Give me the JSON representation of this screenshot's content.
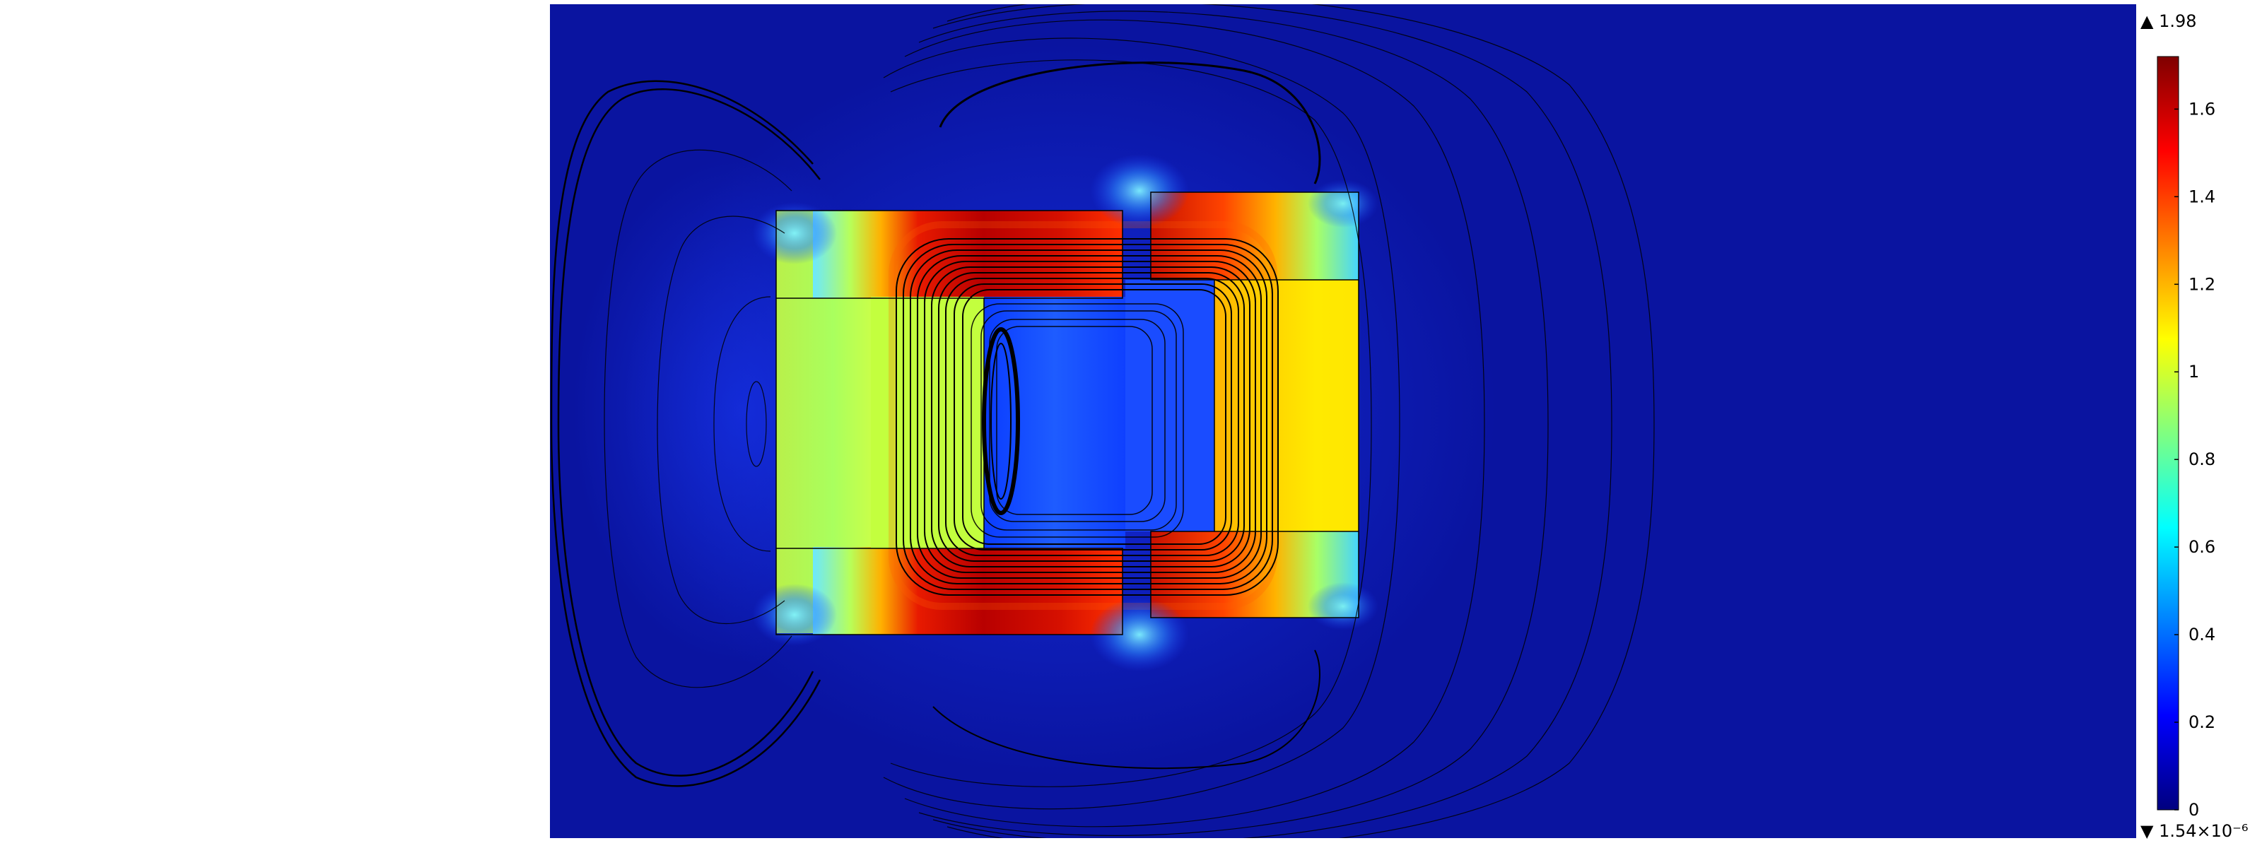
{
  "chart_data": {
    "type": "heatmap",
    "title": "",
    "xlabel": "",
    "ylabel": "",
    "colormap": [
      "#00007f",
      "#0000ff",
      "#0080ff",
      "#00ffff",
      "#80ff80",
      "#ffff00",
      "#ff8000",
      "#ff0000",
      "#7f0000"
    ],
    "background_color": "#0a14a0",
    "colorbar": {
      "range": [
        0,
        1.72
      ],
      "ticks": [
        0,
        0.2,
        0.4,
        0.6,
        0.8,
        1,
        1.2,
        1.4,
        1.6
      ],
      "tick_labels": [
        "0",
        "0.2",
        "0.4",
        "0.6",
        "0.8",
        "1",
        "1.2",
        "1.4",
        "1.6"
      ],
      "max_marker": "▲ 1.98",
      "min_marker": "▼ 1.54×10⁻⁶"
    },
    "regions": [
      {
        "name": "left-yoke",
        "value": 0.95
      },
      {
        "name": "top-bridge",
        "value": 1.6
      },
      {
        "name": "bottom-bridge",
        "value": 1.6
      },
      {
        "name": "right-upper-arm",
        "value": 1.4
      },
      {
        "name": "right-lower-arm",
        "value": 1.4
      },
      {
        "name": "right-yoke",
        "value": 1.1
      },
      {
        "name": "inner-core",
        "value": 0.25
      },
      {
        "name": "gap-region",
        "value": 0.3
      }
    ]
  }
}
